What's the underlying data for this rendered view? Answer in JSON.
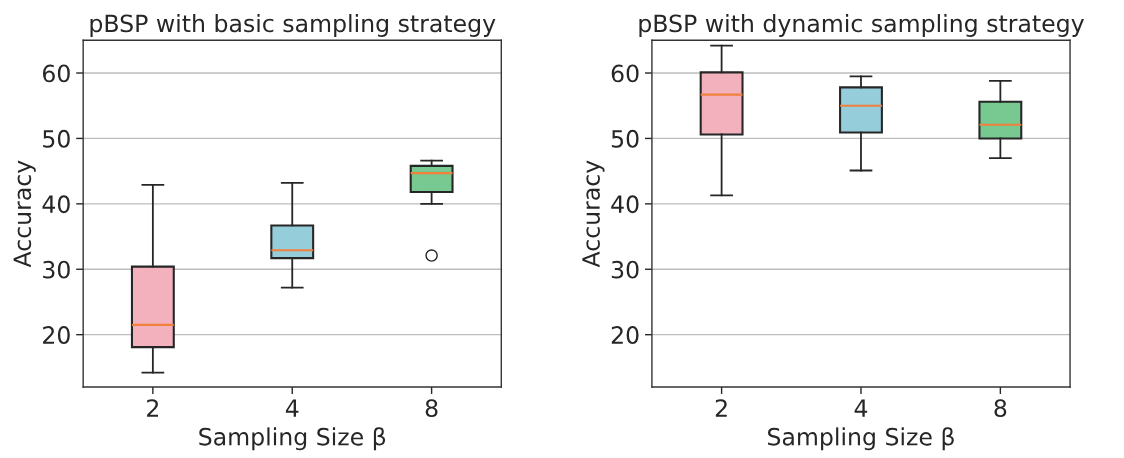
{
  "chart_data": [
    {
      "type": "box",
      "title": "pBSP with basic sampling strategy",
      "xlabel": "Sampling Size β",
      "ylabel": "Accuracy",
      "categories": [
        "2",
        "4",
        "8"
      ],
      "colors": [
        "#f2b1bd",
        "#96cddb",
        "#78c891"
      ],
      "ylim": [
        12,
        65
      ],
      "yticks": [
        20,
        30,
        40,
        50,
        60
      ],
      "grid": "y",
      "boxes": [
        {
          "low": 14.2,
          "q1": 18.1,
          "median": 21.5,
          "q3": 30.4,
          "high": 42.9
        },
        {
          "low": 27.2,
          "q1": 31.7,
          "median": 32.9,
          "q3": 36.7,
          "high": 43.2
        },
        {
          "low": 40.0,
          "q1": 41.8,
          "median": 44.7,
          "q3": 45.8,
          "high": 46.6,
          "outliers": [
            32.1
          ]
        }
      ]
    },
    {
      "type": "box",
      "title": "pBSP with dynamic sampling strategy",
      "xlabel": "Sampling Size β",
      "ylabel": "Accuracy",
      "categories": [
        "2",
        "4",
        "8"
      ],
      "colors": [
        "#f2b1bd",
        "#96cddb",
        "#78c891"
      ],
      "ylim": [
        12,
        65
      ],
      "yticks": [
        20,
        30,
        40,
        50,
        60
      ],
      "grid": "y",
      "boxes": [
        {
          "low": 41.3,
          "q1": 50.6,
          "median": 56.7,
          "q3": 60.1,
          "high": 64.2
        },
        {
          "low": 45.1,
          "q1": 50.9,
          "median": 55.0,
          "q3": 57.8,
          "high": 59.5
        },
        {
          "low": 47.0,
          "q1": 50.0,
          "median": 52.1,
          "q3": 55.6,
          "high": 58.8
        }
      ]
    }
  ]
}
